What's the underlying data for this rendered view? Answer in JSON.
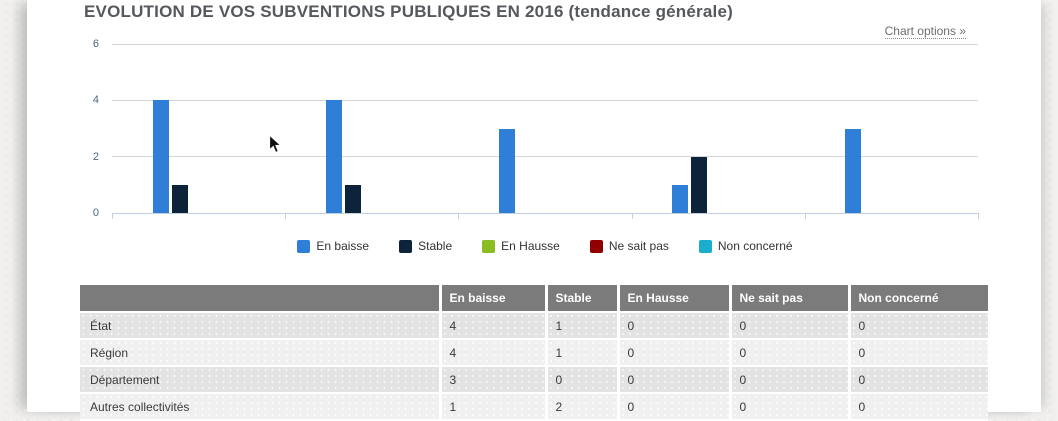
{
  "page": {
    "title": "EVOLUTION DE VOS SUBVENTIONS PUBLIQUES EN 2016 (tendance générale)",
    "chart_options_label": "Chart options »"
  },
  "chart_data": {
    "type": "bar",
    "title": "EVOLUTION DE VOS SUBVENTIONS PUBLIQUES EN 2016 (tendance générale)",
    "categories": [
      "État",
      "Région",
      "Département",
      "Autres collectivités",
      ""
    ],
    "series": [
      {
        "name": "En baisse",
        "color": "#2f7ed8",
        "values": [
          4,
          4,
          3,
          1,
          3
        ]
      },
      {
        "name": "Stable",
        "color": "#0d233a",
        "values": [
          1,
          1,
          0,
          2,
          0
        ]
      },
      {
        "name": "En Hausse",
        "color": "#8bbc21",
        "values": [
          0,
          0,
          0,
          0,
          0
        ]
      },
      {
        "name": "Ne sait pas",
        "color": "#910000",
        "values": [
          0,
          0,
          0,
          0,
          0
        ]
      },
      {
        "name": "Non concerné",
        "color": "#1aadce",
        "values": [
          0,
          0,
          0,
          0,
          0
        ]
      }
    ],
    "xlabel": "",
    "ylabel": "",
    "ylim": [
      0,
      6
    ],
    "yticks": [
      6,
      4,
      2,
      0
    ],
    "grid": true,
    "legend_position": "bottom"
  },
  "table": {
    "headers": [
      "",
      "En baisse",
      "Stable",
      "En Hausse",
      "Ne sait pas",
      "Non concerné"
    ],
    "rows": [
      {
        "label": "État",
        "values": [
          "4",
          "1",
          "0",
          "0",
          "0"
        ]
      },
      {
        "label": "Région",
        "values": [
          "4",
          "1",
          "0",
          "0",
          "0"
        ]
      },
      {
        "label": "Département",
        "values": [
          "3",
          "0",
          "0",
          "0",
          "0"
        ]
      },
      {
        "label": "Autres collectivités",
        "values": [
          "1",
          "2",
          "0",
          "0",
          "0"
        ]
      }
    ]
  }
}
